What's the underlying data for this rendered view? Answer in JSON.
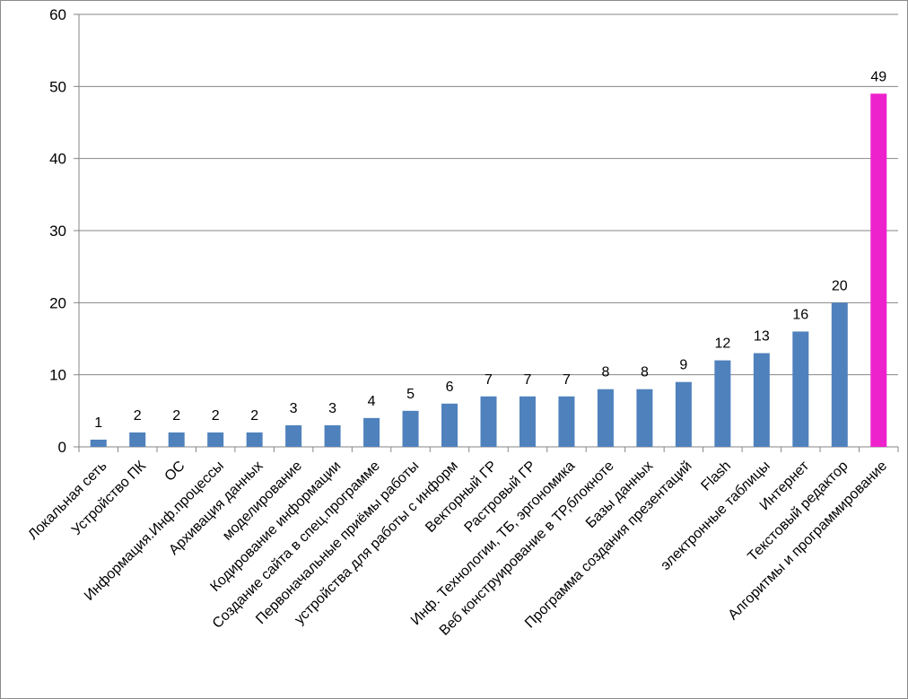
{
  "chart_data": {
    "type": "bar",
    "title": "",
    "xlabel": "",
    "ylabel": "",
    "ylim": [
      0,
      60
    ],
    "yticks": [
      0,
      10,
      20,
      30,
      40,
      50,
      60
    ],
    "grid": true,
    "legend": "none",
    "categories": [
      "Локальная сеть",
      "Устройство ПК",
      "ОС",
      "Информация.Инф.процессы",
      "Архивация данных",
      "моделирование",
      "Кодирование информации",
      "Создание сайта в спец.программе",
      "Первоначальные приёмы работы",
      "устройства для работы с информ",
      "Векторный ГР",
      "Растровый ГР",
      "Инф. Технологии, ТБ, эргономика",
      "Веб конструирование  в ТР,блокноте",
      "Базы данных",
      "Программа создания презентаций",
      "Flash",
      "электронные таблицы",
      "Интернет",
      "Текстовый редактор",
      "Алгоритмы и программирование"
    ],
    "values": [
      1,
      2,
      2,
      2,
      2,
      3,
      3,
      4,
      5,
      6,
      7,
      7,
      7,
      8,
      8,
      9,
      12,
      13,
      16,
      20,
      49
    ],
    "colors": {
      "bar": "#4f81bd",
      "highlight": "#ee22cc",
      "gridline": "#868686",
      "axis": "#868686"
    },
    "highlight_index": 20
  }
}
